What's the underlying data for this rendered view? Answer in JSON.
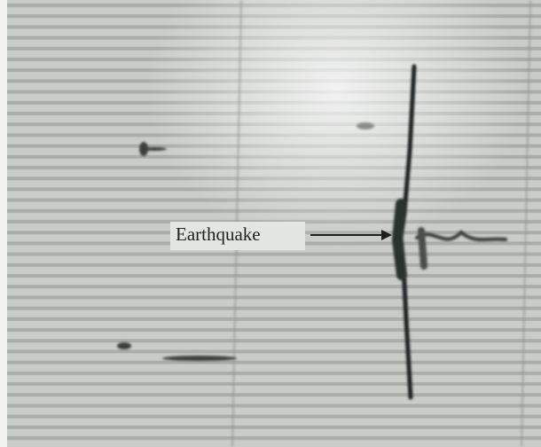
{
  "annotation": {
    "label": "Earthquake"
  }
}
